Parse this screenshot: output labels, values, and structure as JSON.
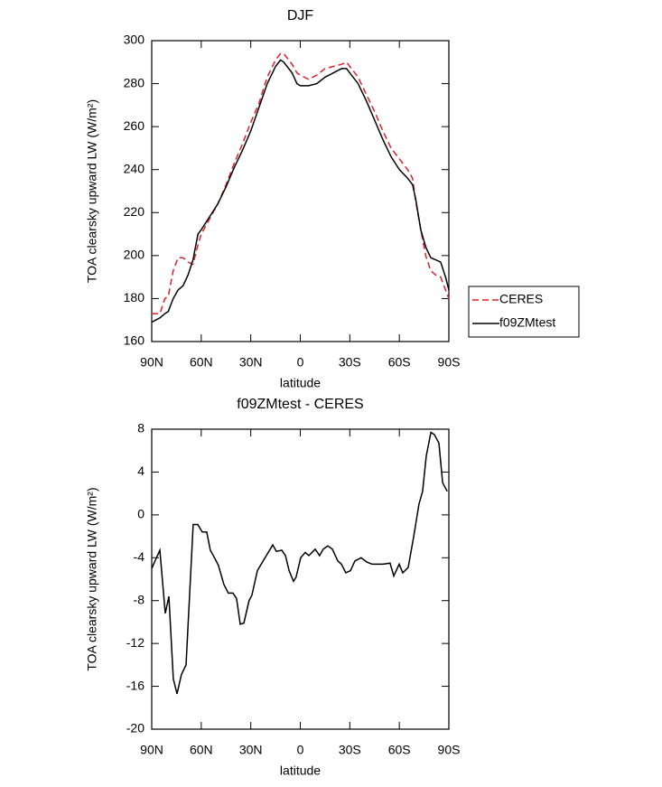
{
  "chart_data": [
    {
      "type": "line",
      "title": "DJF",
      "x_label": "latitude",
      "y_label": "TOA clearsky upward LW (W/m²)",
      "x": [
        90,
        85,
        82,
        80,
        77,
        74,
        71,
        68,
        65,
        62,
        60,
        55,
        50,
        45,
        40,
        35,
        30,
        25,
        20,
        15,
        12,
        10,
        5,
        2,
        0,
        -5,
        -10,
        -15,
        -20,
        -25,
        -28,
        -30,
        -35,
        -40,
        -45,
        -50,
        -55,
        -60,
        -65,
        -68,
        -70,
        -73,
        -76,
        -79,
        -82,
        -85,
        -88,
        -90
      ],
      "series": [
        {
          "name": "CERES",
          "color": "#e0202a",
          "line_style": "dashed",
          "values": [
            173,
            173,
            180,
            181,
            193,
            199,
            199,
            197,
            196,
            205,
            210,
            217,
            224,
            233,
            243,
            252,
            262,
            271,
            283,
            291,
            294,
            294,
            289,
            285,
            284,
            282,
            284,
            287,
            288,
            289,
            290,
            288,
            283,
            275,
            267,
            258,
            250,
            245,
            240,
            236,
            225,
            212,
            200,
            193,
            191,
            190,
            184,
            180
          ]
        },
        {
          "name": "f09ZMtest",
          "color": "#000000",
          "line_style": "solid",
          "values": [
            169,
            171,
            173,
            174,
            180,
            184,
            186,
            191,
            198,
            210,
            212,
            218,
            224,
            232,
            241,
            249,
            258,
            269,
            280,
            288,
            291,
            290,
            285,
            280,
            279,
            279,
            280,
            283,
            285,
            287,
            287,
            285,
            280,
            272,
            263,
            254,
            246,
            240,
            236,
            233,
            226,
            212,
            204,
            199,
            198,
            197,
            190,
            184
          ]
        }
      ],
      "xlim": [
        90,
        -90
      ],
      "xticks": [
        {
          "value": 90,
          "label": "90N"
        },
        {
          "value": 60,
          "label": "60N"
        },
        {
          "value": 30,
          "label": "30N"
        },
        0,
        {
          "value": -30,
          "label": "30S"
        },
        {
          "value": -60,
          "label": "60S"
        },
        {
          "value": -90,
          "label": "90S"
        }
      ],
      "ylim": [
        160,
        300
      ],
      "yticks": [
        160,
        180,
        200,
        220,
        240,
        260,
        280,
        300
      ],
      "legend": "right"
    },
    {
      "type": "line",
      "title": "f09ZMtest - CERES",
      "x_label": "latitude",
      "y_label": "TOA clearsky upward LW (W/m²)",
      "x": [
        90,
        85.1,
        81.8,
        79.6,
        76.9,
        74.7,
        72,
        69.2,
        64.9,
        62.1,
        59.4,
        56.7,
        54.5,
        52.3,
        49.6,
        46.3,
        43.6,
        40.8,
        38.6,
        36.4,
        34.2,
        31,
        29.3,
        26,
        23.3,
        19.4,
        16.7,
        14.5,
        11.2,
        9,
        6.8,
        4.1,
        2.5,
        -0.2,
        -3,
        -5.2,
        -9,
        -11.7,
        -13.9,
        -16.7,
        -19.4,
        -22.7,
        -24.9,
        -27.6,
        -30.4,
        -33.1,
        -36.9,
        -40.2,
        -43.5,
        -46.8,
        -50.1,
        -54.4,
        -56.6,
        -59.9,
        -62.1,
        -65.4,
        -68.7,
        -71.9,
        -74.1,
        -76.3,
        -79.1,
        -81.2,
        -84,
        -86.2,
        -89
      ],
      "series": [
        {
          "color": "#000000",
          "line_style": "solid",
          "values": [
            -5,
            -3.3,
            -9.2,
            -7.6,
            -15.3,
            -16.7,
            -14.9,
            -14,
            -0.9,
            -0.9,
            -1.6,
            -1.6,
            -3.3,
            -3.9,
            -4.7,
            -6.5,
            -7.3,
            -7.3,
            -7.8,
            -10.2,
            -10.1,
            -8,
            -7.5,
            -5.2,
            -4.5,
            -3.5,
            -2.8,
            -3.4,
            -3.3,
            -3.8,
            -5.2,
            -6.2,
            -5.8,
            -4,
            -3.5,
            -3.8,
            -3.2,
            -3.8,
            -3.2,
            -2.9,
            -3.2,
            -4.3,
            -4.6,
            -5.4,
            -5.2,
            -4.3,
            -4,
            -4.4,
            -4.6,
            -4.6,
            -4.6,
            -4.5,
            -5.7,
            -4.6,
            -5.4,
            -4.9,
            -2,
            1,
            2.2,
            5.5,
            7.7,
            7.5,
            6.7,
            3,
            2.2
          ]
        }
      ],
      "xlim": [
        90,
        -90
      ],
      "xticks": [
        {
          "value": 90,
          "label": "90N"
        },
        {
          "value": 60,
          "label": "60N"
        },
        {
          "value": 30,
          "label": "30N"
        },
        0,
        {
          "value": -30,
          "label": "30S"
        },
        {
          "value": -60,
          "label": "60S"
        },
        {
          "value": -90,
          "label": "90S"
        }
      ],
      "ylim": [
        -20,
        8
      ],
      "yticks": [
        -20,
        -16,
        -12,
        -8,
        -4,
        0,
        4,
        8
      ]
    }
  ]
}
